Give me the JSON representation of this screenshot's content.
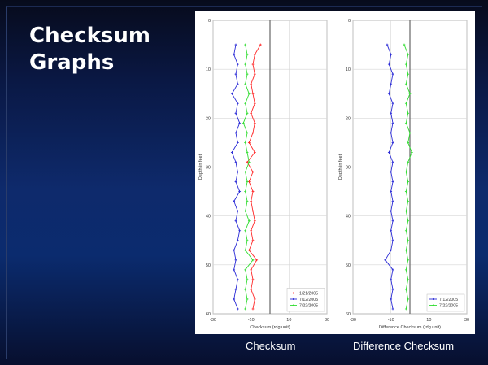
{
  "title": "Checksum\nGraphs",
  "captions": {
    "left": "Checksum",
    "right": "Difference Checksum"
  },
  "colors": {
    "red": "#ff2a2a",
    "blue": "#2a2ad6",
    "green": "#33dd33",
    "grid": "#d6d6d6",
    "axis": "#555555",
    "zero_line": "#666666"
  },
  "chart_data": [
    {
      "type": "line",
      "title": "",
      "xlabel": "Checksum (rdg unit)",
      "ylabel": "Depth in feet",
      "xlim": [
        -30,
        30
      ],
      "ylim": [
        0,
        60
      ],
      "y_inverted": true,
      "xticks": [
        -30,
        -10,
        10,
        30
      ],
      "xtick_labels": [
        "-30",
        "-10",
        "10",
        "30"
      ],
      "yticks": [
        0,
        10,
        20,
        30,
        40,
        50,
        60
      ],
      "yticks_labels": [
        "0",
        "10",
        "20",
        "30",
        "40",
        "50",
        "60"
      ],
      "reference_x": 0,
      "grid": true,
      "legend_position": "bottom-right",
      "series": [
        {
          "name": "1/21/2005",
          "color": "#ff2a2a",
          "points": [
            [
              -5,
              5
            ],
            [
              -8,
              7
            ],
            [
              -9,
              9
            ],
            [
              -8,
              11
            ],
            [
              -10,
              13
            ],
            [
              -9,
              15
            ],
            [
              -8,
              17
            ],
            [
              -10,
              19
            ],
            [
              -8,
              21
            ],
            [
              -9,
              23
            ],
            [
              -11,
              25
            ],
            [
              -8,
              27
            ],
            [
              -12,
              29
            ],
            [
              -9,
              31
            ],
            [
              -11,
              33
            ],
            [
              -9,
              35
            ],
            [
              -10,
              37
            ],
            [
              -9,
              39
            ],
            [
              -8,
              41
            ],
            [
              -10,
              43
            ],
            [
              -9,
              45
            ],
            [
              -11,
              47
            ],
            [
              -7,
              49
            ],
            [
              -10,
              51
            ],
            [
              -9,
              53
            ],
            [
              -10,
              55
            ],
            [
              -8,
              57
            ],
            [
              -9,
              59
            ]
          ]
        },
        {
          "name": "7/12/2005",
          "color": "#2a2ad6",
          "points": [
            [
              -18,
              5
            ],
            [
              -19,
              7
            ],
            [
              -17,
              9
            ],
            [
              -18,
              11
            ],
            [
              -17,
              13
            ],
            [
              -20,
              15
            ],
            [
              -17,
              17
            ],
            [
              -18,
              19
            ],
            [
              -16,
              21
            ],
            [
              -18,
              23
            ],
            [
              -17,
              25
            ],
            [
              -20,
              27
            ],
            [
              -18,
              29
            ],
            [
              -17,
              31
            ],
            [
              -18,
              33
            ],
            [
              -16,
              35
            ],
            [
              -19,
              37
            ],
            [
              -17,
              39
            ],
            [
              -18,
              41
            ],
            [
              -16,
              43
            ],
            [
              -17,
              45
            ],
            [
              -19,
              47
            ],
            [
              -18,
              49
            ],
            [
              -19,
              51
            ],
            [
              -17,
              53
            ],
            [
              -18,
              55
            ],
            [
              -19,
              57
            ],
            [
              -17,
              59
            ]
          ]
        },
        {
          "name": "7/22/2005",
          "color": "#33dd33",
          "points": [
            [
              -13,
              5
            ],
            [
              -12,
              7
            ],
            [
              -13,
              9
            ],
            [
              -12,
              11
            ],
            [
              -13,
              13
            ],
            [
              -11,
              15
            ],
            [
              -13,
              17
            ],
            [
              -12,
              19
            ],
            [
              -14,
              21
            ],
            [
              -12,
              23
            ],
            [
              -13,
              25
            ],
            [
              -12,
              27
            ],
            [
              -11,
              29
            ],
            [
              -13,
              31
            ],
            [
              -12,
              33
            ],
            [
              -13,
              35
            ],
            [
              -12,
              37
            ],
            [
              -13,
              39
            ],
            [
              -11,
              41
            ],
            [
              -13,
              43
            ],
            [
              -12,
              45
            ],
            [
              -13,
              47
            ],
            [
              -9,
              49
            ],
            [
              -13,
              51
            ],
            [
              -12,
              53
            ],
            [
              -13,
              55
            ],
            [
              -12,
              57
            ],
            [
              -13,
              59
            ]
          ]
        }
      ]
    },
    {
      "type": "line",
      "title": "",
      "xlabel": "Difference Checksum (rdg unit)",
      "ylabel": "Depth in feet",
      "xlim": [
        -30,
        30
      ],
      "ylim": [
        0,
        60
      ],
      "y_inverted": true,
      "xticks": [
        -30,
        -10,
        10,
        30
      ],
      "xtick_labels": [
        "-30",
        "-10",
        "10",
        "30"
      ],
      "yticks": [
        0,
        10,
        20,
        30,
        40,
        50,
        60
      ],
      "yticks_labels": [
        "0",
        "10",
        "20",
        "30",
        "40",
        "50",
        "60"
      ],
      "reference_x": 0,
      "grid": true,
      "legend_position": "bottom-right",
      "series": [
        {
          "name": "7/12/2005",
          "color": "#2a2ad6",
          "points": [
            [
              -12,
              5
            ],
            [
              -10,
              7
            ],
            [
              -11,
              9
            ],
            [
              -9,
              11
            ],
            [
              -10,
              13
            ],
            [
              -11,
              15
            ],
            [
              -9,
              17
            ],
            [
              -10,
              19
            ],
            [
              -9,
              21
            ],
            [
              -10,
              23
            ],
            [
              -9,
              25
            ],
            [
              -11,
              27
            ],
            [
              -9,
              29
            ],
            [
              -10,
              31
            ],
            [
              -9,
              33
            ],
            [
              -10,
              35
            ],
            [
              -9,
              37
            ],
            [
              -10,
              39
            ],
            [
              -9,
              41
            ],
            [
              -10,
              43
            ],
            [
              -9,
              45
            ],
            [
              -10,
              47
            ],
            [
              -13,
              49
            ],
            [
              -9,
              51
            ],
            [
              -10,
              53
            ],
            [
              -9,
              55
            ],
            [
              -10,
              57
            ],
            [
              -9,
              59
            ]
          ]
        },
        {
          "name": "7/22/2005",
          "color": "#33dd33",
          "points": [
            [
              -3,
              5
            ],
            [
              -1,
              7
            ],
            [
              -2,
              9
            ],
            [
              -1,
              11
            ],
            [
              -2,
              13
            ],
            [
              0,
              15
            ],
            [
              -2,
              17
            ],
            [
              -1,
              19
            ],
            [
              -2,
              21
            ],
            [
              0,
              23
            ],
            [
              -1,
              25
            ],
            [
              1,
              27
            ],
            [
              -1,
              29
            ],
            [
              -2,
              31
            ],
            [
              -1,
              33
            ],
            [
              -2,
              35
            ],
            [
              -1,
              37
            ],
            [
              -2,
              39
            ],
            [
              -1,
              41
            ],
            [
              -2,
              43
            ],
            [
              -1,
              45
            ],
            [
              -2,
              47
            ],
            [
              -1,
              49
            ],
            [
              -2,
              51
            ],
            [
              -1,
              53
            ],
            [
              -2,
              55
            ],
            [
              -1,
              57
            ],
            [
              -2,
              59
            ]
          ]
        }
      ]
    }
  ]
}
